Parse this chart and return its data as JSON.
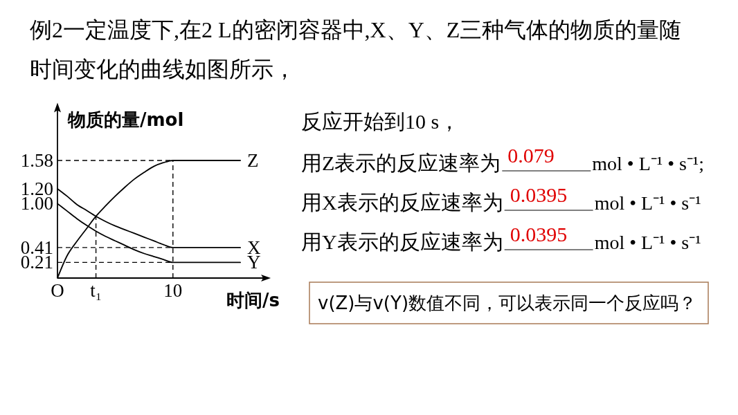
{
  "chart_data": {
    "type": "line",
    "title": "例2一定温度下,在2 L的密闭容器中,X、Y、Z三种气体的物质的量随时间变化的曲线如图所示，",
    "xlabel": "时间/s",
    "ylabel": "物质的量/mol",
    "categories": [
      "O",
      null,
      null,
      null,
      "t₁",
      null,
      null,
      null,
      null,
      null,
      null,
      null,
      "10",
      null,
      null,
      null,
      null,
      null,
      null,
      null
    ],
    "ylim": [
      0,
      2.3
    ],
    "yticks": [
      0.21,
      0.41,
      {
        "value": 1,
        "label": "1.00"
      },
      {
        "value": 1.2,
        "label": "1.20"
      },
      1.58
    ],
    "series": [
      {
        "name": "Z",
        "color": "#000000",
        "values": [
          0,
          0.3,
          0.49,
          0.66,
          0.83,
          0.97,
          1.1,
          1.22,
          1.33,
          1.42,
          1.5,
          1.55,
          1.58,
          1.58,
          1.58,
          1.58,
          1.58,
          1.58,
          1.58,
          1.58
        ]
      },
      {
        "name": "X",
        "color": "#000000",
        "values": [
          1.2,
          1.1,
          0.99,
          0.91,
          0.83,
          0.76,
          0.7,
          0.65,
          0.6,
          0.55,
          0.5,
          0.45,
          0.41,
          0.41,
          0.41,
          0.41,
          0.41,
          0.41,
          0.41,
          0.41
        ]
      },
      {
        "name": "Y",
        "color": "#000000",
        "values": [
          1.0,
          0.9,
          0.8,
          0.71,
          0.63,
          0.56,
          0.5,
          0.44,
          0.38,
          0.33,
          0.29,
          0.25,
          0.21,
          0.21,
          0.21,
          0.21,
          0.21,
          0.21,
          0.21,
          0.21
        ]
      }
    ],
    "ref_lines": [
      {
        "axis": "y",
        "value": 1.58,
        "color": "#000000",
        "line_style": "dashed"
      },
      {
        "axis": "y",
        "value": 0.41,
        "color": "#000000",
        "line_style": "dashed"
      },
      {
        "axis": "y",
        "value": 0.21,
        "color": "#000000",
        "line_style": "dashed"
      },
      {
        "axis": "x",
        "value": "10",
        "color": "#000000",
        "line_style": "dashed"
      },
      {
        "axis": "x",
        "value": "t₁",
        "color": "#000000",
        "line_style": "dashed"
      }
    ],
    "annotations": [
      "反应开始到10 s，",
      "用Z表示的反应速率为",
      "0.079",
      "mol • L⁻¹ • s⁻¹;",
      "用X表示的反应速率为",
      "0.0395",
      "mol • L⁻¹ • s⁻¹",
      "用Y表示的反应速率为",
      "0.0395",
      "mol • L⁻¹ • s⁻¹",
      "v(Z)与v(Y)数值不同，可以表示同一个反应吗？"
    ]
  }
}
